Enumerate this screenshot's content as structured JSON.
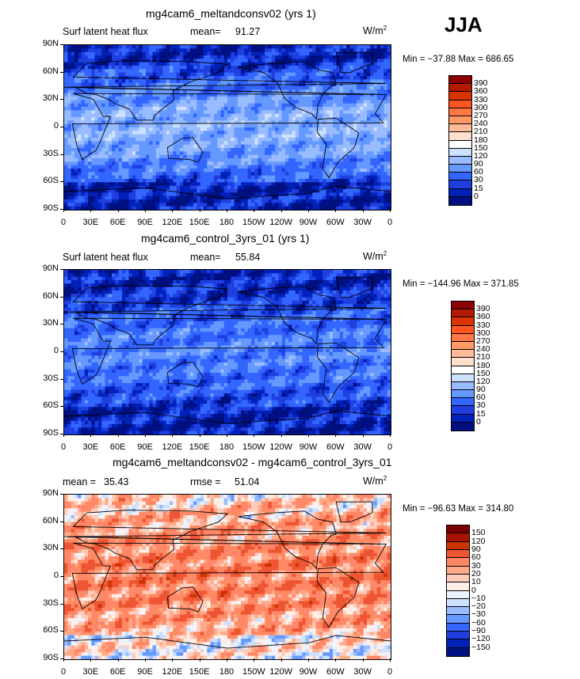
{
  "season": "JJA",
  "unit": "W/m",
  "unit_exp": "2",
  "xticks": [
    "0",
    "30E",
    "60E",
    "90E",
    "120E",
    "150E",
    "180",
    "150W",
    "120W",
    "90W",
    "60W",
    "30W",
    "0"
  ],
  "yticks": [
    "90N",
    "60N",
    "30N",
    "0",
    "30S",
    "60S",
    "90S"
  ],
  "panels": [
    {
      "title": "mg4cam6_meltandconsv02 (yrs 1)",
      "variable": "Surf latent heat flux",
      "stat1_label": "mean=",
      "stat1_value": "91.27",
      "stat2_label": "",
      "stat2_value": "",
      "minmax": "Min = −37.88 Max = 686.65",
      "levels": [
        "390",
        "360",
        "330",
        "300",
        "270",
        "240",
        "210",
        "180",
        "150",
        "120",
        "90",
        "60",
        "30",
        "15",
        "0"
      ],
      "colors": [
        "#8b0000",
        "#b31a00",
        "#d93300",
        "#ff5522",
        "#ff7744",
        "#ff9966",
        "#ffbb99",
        "#ffe0cc",
        "#ffffff",
        "#cce0ff",
        "#99bbff",
        "#6699ff",
        "#3366ff",
        "#1f3fe0",
        "#0022bb",
        "#001080"
      ]
    },
    {
      "title": "mg4cam6_control_3yrs_01 (yrs 1)",
      "variable": "Surf latent heat flux",
      "stat1_label": "mean=",
      "stat1_value": "55.84",
      "stat2_label": "",
      "stat2_value": "",
      "minmax": "Min = −144.96 Max = 371.85",
      "levels": [
        "390",
        "360",
        "330",
        "300",
        "270",
        "240",
        "210",
        "180",
        "150",
        "120",
        "90",
        "60",
        "30",
        "15",
        "0"
      ],
      "colors": [
        "#8b0000",
        "#b31a00",
        "#d93300",
        "#ff5522",
        "#ff7744",
        "#ff9966",
        "#ffbb99",
        "#ffe0cc",
        "#ffffff",
        "#cce0ff",
        "#99bbff",
        "#6699ff",
        "#3366ff",
        "#1f3fe0",
        "#0022bb",
        "#001080"
      ]
    },
    {
      "title": "mg4cam6_meltandconsv02 - mg4cam6_control_3yrs_01",
      "variable": "",
      "stat1_label": "mean =",
      "stat1_value": "35.43",
      "stat2_label": "rmse =",
      "stat2_value": "51.04",
      "minmax": "Min = −96.63 Max = 314.80",
      "levels": [
        "150",
        "120",
        "90",
        "60",
        "30",
        "20",
        "10",
        "0",
        "−10",
        "−20",
        "−30",
        "−60",
        "−90",
        "−120",
        "−150"
      ],
      "colors": [
        "#7a0000",
        "#a61400",
        "#cc3300",
        "#ee5533",
        "#ff8866",
        "#ffaa88",
        "#ffccbb",
        "#ffeee5",
        "#eef4ff",
        "#cce0ff",
        "#99bbff",
        "#6699ff",
        "#3366ff",
        "#1f3fe0",
        "#0022bb",
        "#001080"
      ]
    }
  ],
  "chart_data": [
    {
      "type": "heatmap",
      "title": "mg4cam6_meltandconsv02 (yrs 1)",
      "variable": "Surf latent heat flux",
      "units": "W/m2",
      "mean": 91.27,
      "min": -37.88,
      "max": 686.65,
      "contour_levels": [
        0,
        15,
        30,
        60,
        90,
        120,
        150,
        180,
        210,
        240,
        270,
        300,
        330,
        360,
        390
      ],
      "xlim": [
        0,
        360
      ],
      "ylim": [
        -90,
        90
      ]
    },
    {
      "type": "heatmap",
      "title": "mg4cam6_control_3yrs_01 (yrs 1)",
      "variable": "Surf latent heat flux",
      "units": "W/m2",
      "mean": 55.84,
      "min": -144.96,
      "max": 371.85,
      "contour_levels": [
        0,
        15,
        30,
        60,
        90,
        120,
        150,
        180,
        210,
        240,
        270,
        300,
        330,
        360,
        390
      ],
      "xlim": [
        0,
        360
      ],
      "ylim": [
        -90,
        90
      ]
    },
    {
      "type": "heatmap",
      "title": "mg4cam6_meltandconsv02 - mg4cam6_control_3yrs_01",
      "units": "W/m2",
      "mean": 35.43,
      "rmse": 51.04,
      "min": -96.63,
      "max": 314.8,
      "contour_levels": [
        -150,
        -120,
        -90,
        -60,
        -30,
        -20,
        -10,
        0,
        10,
        20,
        30,
        60,
        90,
        120,
        150
      ],
      "xlim": [
        0,
        360
      ],
      "ylim": [
        -90,
        90
      ]
    }
  ]
}
